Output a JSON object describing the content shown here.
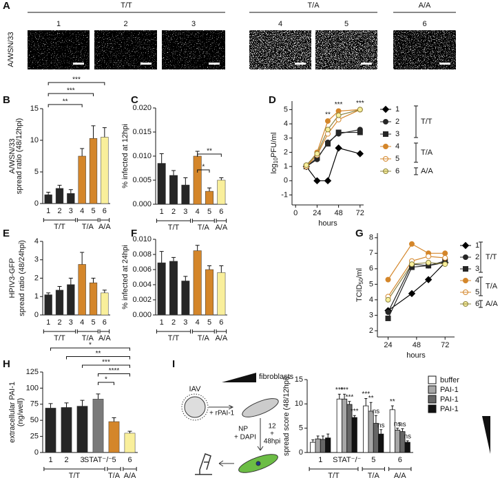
{
  "panel_a": {
    "panel": "A",
    "row_label": "A/WSN/33",
    "groups": [
      {
        "label": "T/T",
        "images": [
          "1",
          "2",
          "3"
        ]
      },
      {
        "label": "T/A",
        "images": [
          "4",
          "5"
        ]
      },
      {
        "label": "A/A",
        "images": [
          "6"
        ]
      }
    ]
  },
  "schematic": {
    "virus": "IAV",
    "treatment": "+ rPAI-1",
    "cells": "fibroblasts",
    "time": [
      "12",
      "+",
      "48hpi"
    ],
    "stain": [
      "NP",
      "+ DAPI"
    ]
  },
  "chart_data": [
    {
      "type": "bar",
      "panel": "B",
      "row_label": "A/WSN/33",
      "y_label": "spread ratio (48/12hpi)",
      "ylim": [
        0,
        15
      ],
      "yticks": [
        0,
        5,
        10,
        15
      ],
      "groups": [
        {
          "label": "T/T",
          "categories": [
            "1",
            "2",
            "3"
          ],
          "values": [
            1.4,
            2.4,
            1.6
          ],
          "errors": [
            0.4,
            0.5,
            0.6
          ],
          "colors": [
            "#262626",
            "#262626",
            "#262626"
          ]
        },
        {
          "label": "T/A",
          "categories": [
            "4",
            "5"
          ],
          "values": [
            7.5,
            10.3
          ],
          "errors": [
            1.2,
            2.0
          ],
          "colors": [
            "#d4862a",
            "#d4862a"
          ]
        },
        {
          "label": "A/A",
          "categories": [
            "6"
          ],
          "values": [
            10.5
          ],
          "errors": [
            1.5
          ],
          "colors": [
            "#f9ef9b"
          ]
        }
      ],
      "brackets": [
        {
          "label": "**",
          "between": [
            "1",
            "4"
          ]
        },
        {
          "label": "***",
          "between": [
            "1",
            "5"
          ]
        },
        {
          "label": "***",
          "between": [
            "1",
            "6"
          ]
        }
      ]
    },
    {
      "type": "bar",
      "panel": "C",
      "y_label": "% infected at 12hpi",
      "ylim": [
        0,
        0.02
      ],
      "yticks": [
        {
          "value": 0,
          "label": "0.000"
        },
        {
          "value": 0.005,
          "label": "0.005"
        },
        {
          "value": 0.01,
          "label": "0.010"
        },
        {
          "value": 0.015,
          "label": "0.015"
        },
        {
          "value": 0.02,
          "label": "0.020"
        }
      ],
      "groups": [
        {
          "label": "T/T",
          "categories": [
            "1",
            "2",
            "3"
          ],
          "values": [
            0.0085,
            0.006,
            0.004
          ],
          "errors": [
            0.002,
            0.001,
            0.0015
          ],
          "colors": [
            "#262626",
            "#262626",
            "#262626"
          ]
        },
        {
          "label": "T/A",
          "categories": [
            "4",
            "5"
          ],
          "values": [
            0.01,
            0.0027
          ],
          "errors": [
            0.001,
            0.0007
          ],
          "colors": [
            "#d4862a",
            "#d4862a"
          ]
        },
        {
          "label": "A/A",
          "categories": [
            "6"
          ],
          "values": [
            0.005
          ],
          "errors": [
            0.0005
          ],
          "colors": [
            "#f9ef9b"
          ]
        }
      ],
      "brackets": [
        {
          "label": "*",
          "between": [
            "4",
            "5"
          ]
        },
        {
          "label": "**",
          "between": [
            "4",
            "6"
          ]
        }
      ]
    },
    {
      "type": "line",
      "panel": "D",
      "y_label_parts": [
        "log",
        "10",
        "PFU/ml"
      ],
      "x_label": "hours",
      "x": [
        12,
        24,
        36,
        48,
        72
      ],
      "xlim": [
        -4,
        76
      ],
      "xticks": [
        0,
        24,
        48,
        72
      ],
      "ylim": [
        -1.7,
        5.6
      ],
      "yticks": [
        -1,
        0,
        1,
        2,
        3,
        4,
        5
      ],
      "series": [
        {
          "name": "1",
          "color": "#000000",
          "fill": "#000000",
          "marker": "diamond",
          "values": [
            1,
            0,
            0,
            2.3,
            1.9
          ]
        },
        {
          "name": "2",
          "color": "#262626",
          "fill": "#262626",
          "marker": "circle",
          "values": [
            1,
            1.5,
            2.7,
            3.3,
            3.6
          ]
        },
        {
          "name": "3",
          "color": "#262626",
          "fill": "#262626",
          "marker": "square",
          "values": [
            1,
            1.6,
            2.6,
            3.4,
            3.4
          ]
        },
        {
          "name": "4",
          "color": "#d4862a",
          "fill": "#d4862a",
          "marker": "circle",
          "values": [
            1,
            2,
            4.2,
            4.9,
            5
          ]
        },
        {
          "name": "5",
          "color": "#d4862a",
          "fill": "#ffffff",
          "marker": "circle",
          "values": [
            1,
            1.8,
            3.3,
            4.3,
            5
          ]
        },
        {
          "name": "6",
          "color": "#8a8240",
          "fill": "#f9ef9b",
          "marker": "circle",
          "values": [
            1.1,
            1.9,
            3.6,
            4.6,
            5
          ]
        }
      ],
      "annotations": [
        {
          "label": "**",
          "x": 36
        },
        {
          "label": "***",
          "x": 48
        },
        {
          "label": "***",
          "x": 72
        }
      ],
      "legend_groups": [
        {
          "label": "T/T",
          "series": [
            "1",
            "2",
            "3"
          ]
        },
        {
          "label": "T/A",
          "series": [
            "4",
            "5"
          ]
        },
        {
          "label": "A/A",
          "series": [
            "6"
          ]
        }
      ]
    },
    {
      "type": "bar",
      "panel": "E",
      "row_label": "HPIV3-GFP",
      "y_label": "spread ratio (48/24hpi)",
      "ylim": [
        0,
        4
      ],
      "yticks": [
        0,
        1,
        2,
        3,
        4
      ],
      "groups": [
        {
          "label": "T/T",
          "categories": [
            "1",
            "2",
            "3"
          ],
          "values": [
            1.1,
            1.35,
            1.65
          ],
          "errors": [
            0.1,
            0.2,
            0.35
          ],
          "colors": [
            "#262626",
            "#262626",
            "#262626"
          ]
        },
        {
          "label": "T/A",
          "categories": [
            "4",
            "5"
          ],
          "values": [
            2.75,
            1.75
          ],
          "errors": [
            0.65,
            0.25
          ],
          "colors": [
            "#d4862a",
            "#d4862a"
          ]
        },
        {
          "label": "A/A",
          "categories": [
            "6"
          ],
          "values": [
            1.2
          ],
          "errors": [
            0.15
          ],
          "colors": [
            "#f9ef9b"
          ]
        }
      ]
    },
    {
      "type": "bar",
      "panel": "F",
      "y_label": "% infected at 24hpi",
      "ylim": [
        0,
        0.01
      ],
      "yticks": [
        {
          "value": 0,
          "label": "0.000"
        },
        {
          "value": 0.002,
          "label": "0.002"
        },
        {
          "value": 0.004,
          "label": "0.004"
        },
        {
          "value": 0.006,
          "label": "0.006"
        },
        {
          "value": 0.008,
          "label": "0.008"
        },
        {
          "value": 0.01,
          "label": "0.010"
        }
      ],
      "groups": [
        {
          "label": "T/T",
          "categories": [
            "1",
            "2",
            "3"
          ],
          "values": [
            0.0069,
            0.0071,
            0.0045
          ],
          "errors": [
            0.0015,
            0.0005,
            0.0006
          ],
          "colors": [
            "#262626",
            "#262626",
            "#262626"
          ]
        },
        {
          "label": "T/A",
          "categories": [
            "4",
            "5"
          ],
          "values": [
            0.0085,
            0.006
          ],
          "errors": [
            0.0007,
            0.0005
          ],
          "colors": [
            "#d4862a",
            "#d4862a"
          ]
        },
        {
          "label": "A/A",
          "categories": [
            "6"
          ],
          "values": [
            0.0056
          ],
          "errors": [
            0.0009
          ],
          "colors": [
            "#f9ef9b"
          ]
        }
      ]
    },
    {
      "type": "line",
      "panel": "G",
      "y_label_parts": [
        "TCID",
        "50",
        "/ml"
      ],
      "x_label": "hours",
      "x": [
        24,
        44,
        58,
        72
      ],
      "xlim": [
        15,
        80
      ],
      "xticks": [
        24,
        48,
        72
      ],
      "ylim": [
        1.6,
        8.3
      ],
      "yticks": [
        2,
        3,
        4,
        5,
        6,
        7,
        8
      ],
      "series": [
        {
          "name": "1",
          "color": "#000000",
          "fill": "#000000",
          "marker": "diamond",
          "values": [
            3.3,
            4.4,
            5.3,
            6.4
          ]
        },
        {
          "name": "2",
          "color": "#262626",
          "fill": "#262626",
          "marker": "circle",
          "values": [
            3.2,
            6.3,
            6.2,
            6.4
          ]
        },
        {
          "name": "3",
          "color": "#262626",
          "fill": "#262626",
          "marker": "square",
          "values": [
            2.8,
            6.1,
            6.2,
            6.5
          ]
        },
        {
          "name": "4",
          "color": "#d4862a",
          "fill": "#d4862a",
          "marker": "circle",
          "values": [
            5.3,
            7.6,
            7.0,
            7.0
          ]
        },
        {
          "name": "5",
          "color": "#d4862a",
          "fill": "#ffffff",
          "marker": "circle",
          "values": [
            4.2,
            6.5,
            6.8,
            6.7
          ]
        },
        {
          "name": "6",
          "color": "#8a8240",
          "fill": "#f9ef9b",
          "marker": "circle",
          "values": [
            4.0,
            6.3,
            6.4,
            6.3
          ]
        }
      ],
      "legend_groups": [
        {
          "label": "T/T",
          "series": [
            "1",
            "2",
            "3"
          ]
        },
        {
          "label": "T/A",
          "series": [
            "4",
            "5"
          ]
        },
        {
          "label": "A/A",
          "series": [
            "6"
          ]
        }
      ]
    },
    {
      "type": "bar",
      "panel": "H",
      "y_label": [
        "extracellular PAI-1",
        "(ng/well)"
      ],
      "ylim": [
        0,
        125
      ],
      "yticks": [
        0,
        25,
        50,
        75,
        100,
        125
      ],
      "groups": [
        {
          "label": "T/T",
          "categories": [
            "1",
            "2",
            "3",
            "STAT⁻/⁻"
          ],
          "values": [
            69,
            70,
            72,
            83
          ],
          "errors": [
            7,
            7,
            9,
            8
          ],
          "colors": [
            "#262626",
            "#262626",
            "#262626",
            "#7a7a7a"
          ]
        },
        {
          "label": "T/A",
          "categories": [
            "5"
          ],
          "values": [
            48
          ],
          "errors": [
            6
          ],
          "colors": [
            "#d4862a"
          ]
        },
        {
          "label": "A/A",
          "categories": [
            "6"
          ],
          "values": [
            30
          ],
          "errors": [
            3
          ],
          "colors": [
            "#f9ef9b"
          ]
        }
      ],
      "brackets": [
        {
          "label": "*",
          "between": [
            "STAT⁻/⁻",
            "5"
          ]
        },
        {
          "label": "****",
          "between": [
            "STAT⁻/⁻",
            "6"
          ]
        },
        {
          "label": "***",
          "between": [
            "3",
            "6"
          ]
        },
        {
          "label": "**",
          "between": [
            "2",
            "6"
          ]
        },
        {
          "label": "*",
          "between": [
            "1",
            "6"
          ]
        }
      ]
    },
    {
      "type": "bar",
      "panel": "I",
      "y_label": "spread score (48/12hpi)",
      "ylim": [
        0,
        15
      ],
      "yticks": [
        0,
        5,
        10,
        15
      ],
      "groups": [
        {
          "label": "T/T",
          "categories": [
            "1",
            "STAT⁻/⁻"
          ]
        },
        {
          "label": "T/A",
          "categories": [
            "5"
          ]
        },
        {
          "label": "A/A",
          "categories": [
            "6"
          ]
        }
      ],
      "series": [
        {
          "name": "buffer",
          "color": "#ffffff",
          "values": [
            2.1,
            11.0,
            9.6,
            8.8
          ],
          "errors": [
            0.5,
            1.0,
            1.5,
            0.8
          ],
          "annotations": [
            null,
            "***",
            "***",
            "**"
          ]
        },
        {
          "name": "PAI-1",
          "color": "#a6a6a6",
          "values": [
            2.8,
            11.0,
            8.5,
            4.6
          ],
          "errors": [
            0.6,
            1.0,
            1.8,
            0.4
          ],
          "annotations": [
            null,
            "***",
            "**",
            "ns"
          ]
        },
        {
          "name": "PAI-1",
          "color": "#666666",
          "values": [
            2.7,
            9.9,
            6.0,
            4.3
          ],
          "errors": [
            0.7,
            0.6,
            1.6,
            0.6
          ],
          "annotations": [
            null,
            "***",
            "ns",
            "ns"
          ]
        },
        {
          "name": "PAI-1",
          "color": "#111111",
          "values": [
            3.0,
            7.2,
            3.8,
            2.1
          ],
          "errors": [
            0.8,
            0.4,
            0.9,
            0.3
          ],
          "annotations": [
            null,
            "***",
            "ns",
            "ns"
          ]
        }
      ]
    }
  ]
}
